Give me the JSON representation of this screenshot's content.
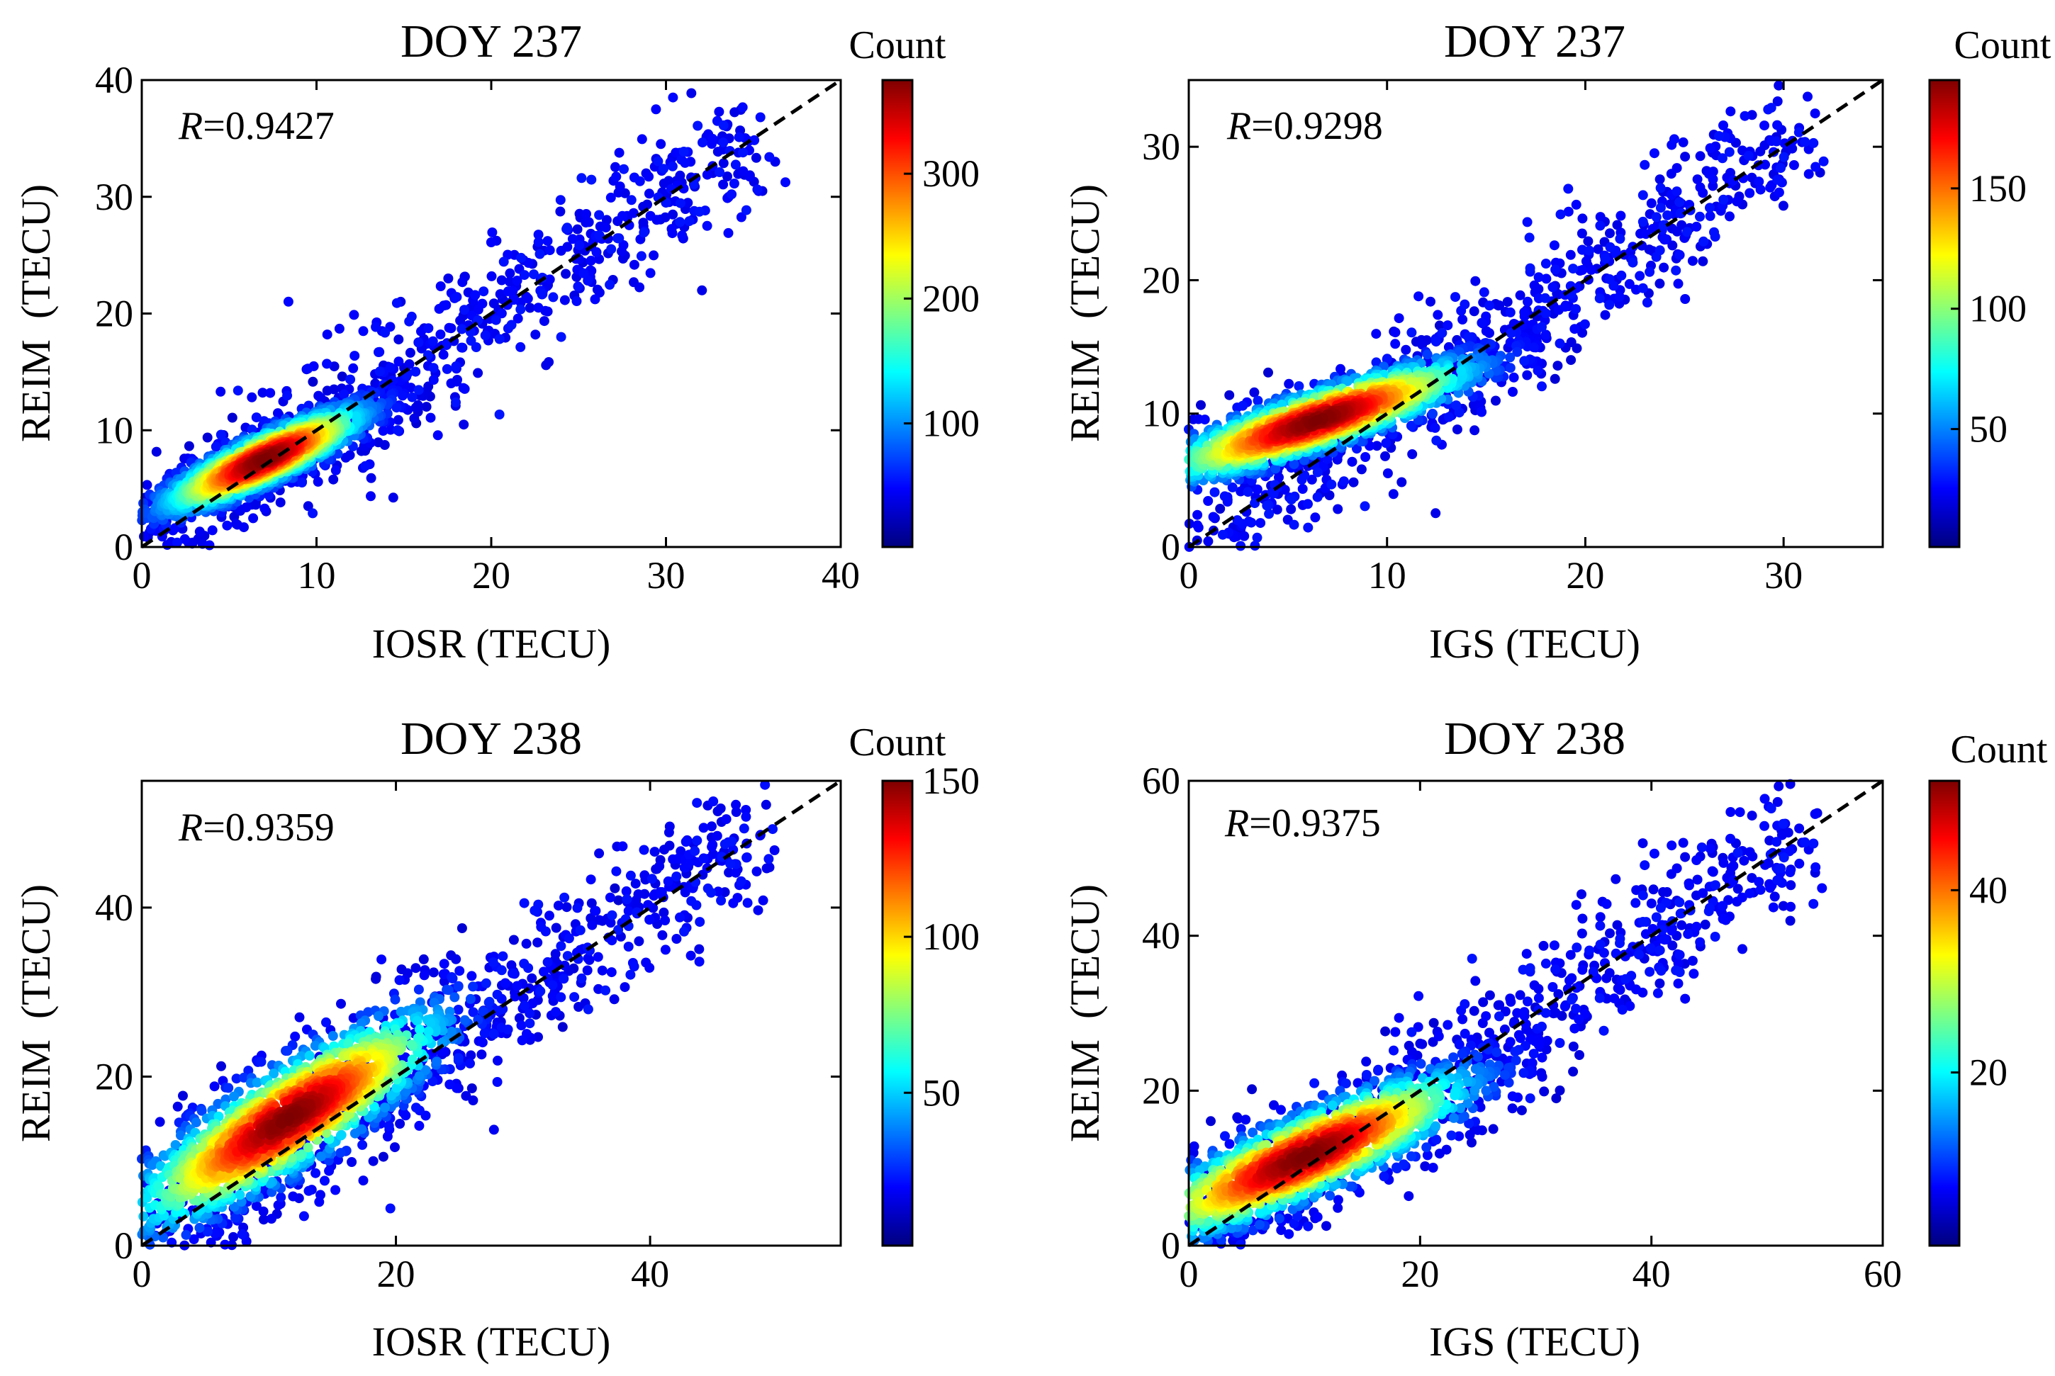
{
  "colormap": [
    "#00007f",
    "#0000ff",
    "#0080ff",
    "#00ffff",
    "#80ff80",
    "#ffff00",
    "#ff8000",
    "#ff0000",
    "#7f0000"
  ],
  "chart_data": [
    {
      "type": "scatter",
      "title": "DOY 237",
      "xlabel": "IOSR (TECU)",
      "ylabel": "REIM  (TECU)",
      "xlim": [
        0,
        40
      ],
      "ylim": [
        0,
        40
      ],
      "xticks": [
        0,
        10,
        20,
        30,
        40
      ],
      "yticks": [
        0,
        10,
        20,
        30,
        40
      ],
      "r_symbol": "R",
      "r_value": "=0.9427",
      "colorbar": {
        "title": "Count",
        "range": [
          1,
          375
        ],
        "ticks": [
          100,
          200,
          300
        ]
      },
      "reference_line": "y = x",
      "density_core": {
        "x_range": [
          3,
          11
        ],
        "y_range": [
          4,
          11
        ],
        "peak_count": 375
      },
      "pattern": "diagonal streaks"
    },
    {
      "type": "scatter",
      "title": "DOY 237",
      "xlabel": "IGS (TECU)",
      "ylabel": "REIM  (TECU)",
      "xlim": [
        0,
        35
      ],
      "ylim": [
        0,
        35
      ],
      "xticks": [
        0,
        10,
        20,
        30
      ],
      "yticks": [
        0,
        10,
        20,
        30
      ],
      "r_symbol": "R",
      "r_value": "=0.9298",
      "colorbar": {
        "title": "Count",
        "range": [
          1,
          195
        ],
        "ticks": [
          50,
          100,
          150
        ]
      },
      "reference_line": "y = x",
      "density_core": {
        "x_range": [
          1,
          12
        ],
        "y_range": [
          6,
          13
        ],
        "peak_count": 195
      },
      "pattern": "scattered"
    },
    {
      "type": "scatter",
      "title": "DOY 238",
      "xlabel": "IOSR (TECU)",
      "ylabel": "REIM  (TECU)",
      "xlim": [
        0,
        55
      ],
      "ylim": [
        0,
        55
      ],
      "xticks": [
        0,
        20,
        40
      ],
      "yticks": [
        0,
        20,
        40
      ],
      "r_symbol": "R",
      "r_value": "=0.9359",
      "colorbar": {
        "title": "Count",
        "range": [
          1,
          150
        ],
        "ticks": [
          50,
          100,
          150
        ]
      },
      "reference_line": "y = x",
      "density_core": {
        "x_range": [
          3,
          20
        ],
        "y_range": [
          5,
          25
        ],
        "peak_count": 150
      },
      "pattern": "diagonal streaks"
    },
    {
      "type": "scatter",
      "title": "DOY 238",
      "xlabel": "IGS (TECU)",
      "ylabel": "REIM  (TECU)",
      "xlim": [
        0,
        60
      ],
      "ylim": [
        0,
        60
      ],
      "xticks": [
        0,
        20,
        40,
        60
      ],
      "yticks": [
        0,
        20,
        40,
        60
      ],
      "r_symbol": "R",
      "r_value": "=0.9375",
      "colorbar": {
        "title": "Count",
        "range": [
          1,
          52
        ],
        "ticks": [
          20,
          40
        ]
      },
      "reference_line": "y = x",
      "density_core": {
        "x_range": [
          0,
          20
        ],
        "y_range": [
          3,
          20
        ],
        "peak_count": 52
      },
      "pattern": "scattered"
    }
  ]
}
